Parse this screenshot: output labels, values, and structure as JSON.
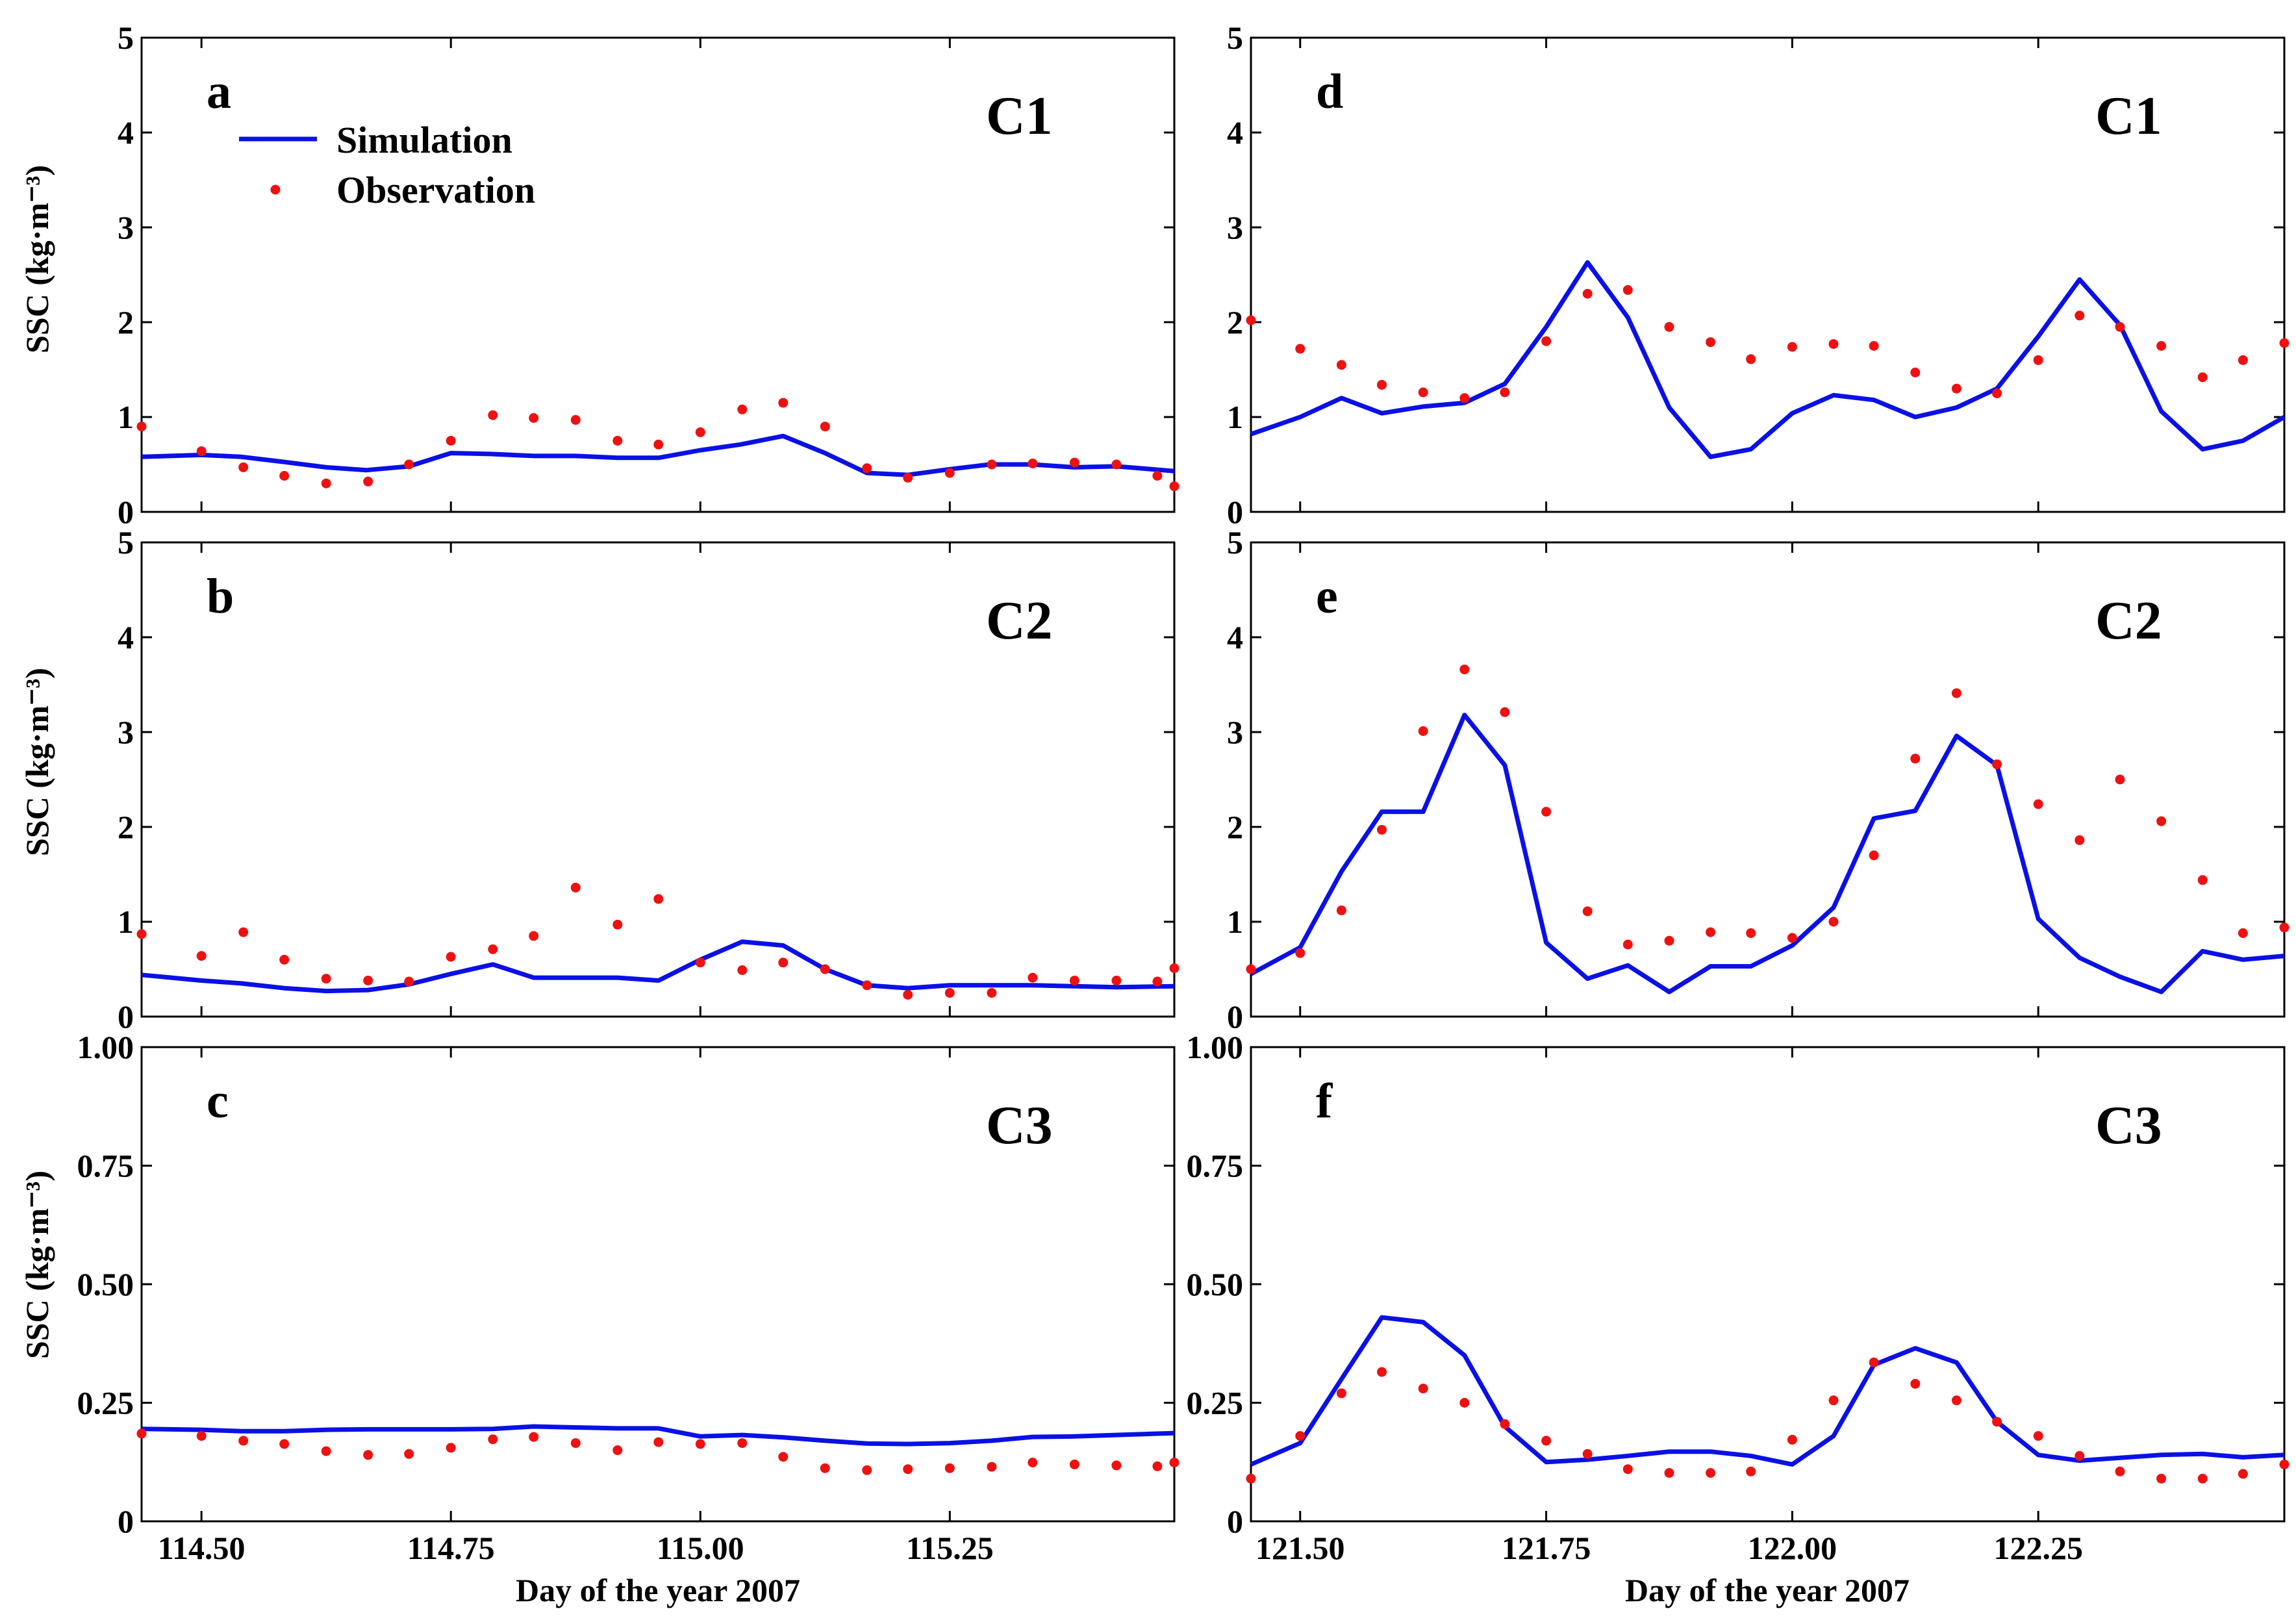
{
  "figure": {
    "xlabel": "Day of the year 2007",
    "ylabel": "SSC (kg·m⁻³)",
    "legend": {
      "simulation": "Simulation",
      "observation": "Observation"
    },
    "colors": {
      "simulation": "#0a10e6",
      "observation": "#ee1111"
    }
  },
  "chart_data": [
    {
      "type": "line",
      "panel": "a",
      "station": "C1",
      "legend": true,
      "xlim": [
        114.44,
        115.475
      ],
      "ylim": [
        0,
        5
      ],
      "xticks": [
        "114.50",
        "114.75",
        "115.00",
        "115.25"
      ],
      "yticks": [
        "0",
        "1",
        "2",
        "3",
        "4",
        "5"
      ],
      "series": [
        {
          "name": "Simulation",
          "kind": "line",
          "x": [
            114.44,
            114.5,
            114.54,
            114.58,
            114.625,
            114.665,
            114.708,
            114.75,
            114.79,
            114.833,
            114.875,
            114.917,
            114.958,
            115.0,
            115.04,
            115.083,
            115.125,
            115.167,
            115.208,
            115.25,
            115.29,
            115.333,
            115.375,
            115.417,
            115.475
          ],
          "y": [
            0.58,
            0.6,
            0.58,
            0.53,
            0.47,
            0.44,
            0.48,
            0.62,
            0.61,
            0.59,
            0.59,
            0.57,
            0.57,
            0.65,
            0.71,
            0.8,
            0.62,
            0.41,
            0.39,
            0.45,
            0.5,
            0.5,
            0.47,
            0.48,
            0.43
          ]
        },
        {
          "name": "Observation",
          "kind": "scatter",
          "x": [
            114.44,
            114.5,
            114.542,
            114.583,
            114.625,
            114.667,
            114.708,
            114.75,
            114.792,
            114.833,
            114.875,
            114.917,
            114.958,
            115.0,
            115.042,
            115.083,
            115.125,
            115.167,
            115.208,
            115.25,
            115.292,
            115.333,
            115.375,
            115.417,
            115.458,
            115.475
          ],
          "y": [
            0.9,
            0.64,
            0.47,
            0.38,
            0.3,
            0.32,
            0.5,
            0.75,
            1.02,
            0.99,
            0.97,
            0.75,
            0.71,
            0.84,
            1.08,
            1.15,
            0.9,
            0.46,
            0.36,
            0.41,
            0.5,
            0.51,
            0.52,
            0.5,
            0.38,
            0.27
          ]
        }
      ]
    },
    {
      "type": "line",
      "panel": "b",
      "station": "C2",
      "legend": false,
      "xlim": [
        114.44,
        115.475
      ],
      "ylim": [
        0,
        5
      ],
      "xticks": [
        "114.50",
        "114.75",
        "115.00",
        "115.25"
      ],
      "yticks": [
        "0",
        "1",
        "2",
        "3",
        "4",
        "5"
      ],
      "series": [
        {
          "name": "Simulation",
          "kind": "line",
          "x": [
            114.44,
            114.5,
            114.54,
            114.583,
            114.625,
            114.667,
            114.708,
            114.75,
            114.792,
            114.833,
            114.875,
            114.917,
            114.958,
            115.0,
            115.042,
            115.083,
            115.125,
            115.167,
            115.208,
            115.25,
            115.292,
            115.333,
            115.375,
            115.417,
            115.475
          ],
          "y": [
            0.44,
            0.38,
            0.35,
            0.3,
            0.27,
            0.28,
            0.34,
            0.45,
            0.55,
            0.41,
            0.41,
            0.41,
            0.38,
            0.6,
            0.79,
            0.75,
            0.5,
            0.33,
            0.3,
            0.33,
            0.33,
            0.33,
            0.32,
            0.31,
            0.32
          ]
        },
        {
          "name": "Observation",
          "kind": "scatter",
          "x": [
            114.44,
            114.5,
            114.542,
            114.583,
            114.625,
            114.667,
            114.708,
            114.75,
            114.792,
            114.833,
            114.875,
            114.917,
            114.958,
            115.0,
            115.042,
            115.083,
            115.125,
            115.167,
            115.208,
            115.25,
            115.292,
            115.333,
            115.375,
            115.417,
            115.458,
            115.475
          ],
          "y": [
            0.87,
            0.64,
            0.89,
            0.6,
            0.4,
            0.38,
            0.37,
            0.63,
            0.71,
            0.85,
            1.36,
            0.97,
            1.24,
            0.57,
            0.49,
            0.57,
            0.5,
            0.33,
            0.23,
            0.25,
            0.25,
            0.41,
            0.38,
            0.38,
            0.37,
            0.51
          ]
        }
      ]
    },
    {
      "type": "line",
      "panel": "c",
      "station": "C3",
      "legend": false,
      "xlim": [
        114.44,
        115.475
      ],
      "ylim": [
        0,
        1
      ],
      "xticks": [
        "114.50",
        "114.75",
        "115.00",
        "115.25"
      ],
      "yticks": [
        "0",
        "0.25",
        "0.50",
        "0.75",
        "1.00"
      ],
      "series": [
        {
          "name": "Simulation",
          "kind": "line",
          "x": [
            114.44,
            114.5,
            114.54,
            114.583,
            114.625,
            114.667,
            114.708,
            114.75,
            114.792,
            114.833,
            114.875,
            114.917,
            114.958,
            115.0,
            115.042,
            115.083,
            115.125,
            115.167,
            115.208,
            115.25,
            115.292,
            115.333,
            115.375,
            115.417,
            115.475
          ],
          "y": [
            0.195,
            0.193,
            0.19,
            0.19,
            0.193,
            0.194,
            0.194,
            0.194,
            0.195,
            0.2,
            0.198,
            0.196,
            0.196,
            0.179,
            0.182,
            0.177,
            0.17,
            0.164,
            0.163,
            0.165,
            0.17,
            0.178,
            0.179,
            0.182,
            0.186
          ]
        },
        {
          "name": "Observation",
          "kind": "scatter",
          "x": [
            114.44,
            114.5,
            114.542,
            114.583,
            114.625,
            114.667,
            114.708,
            114.75,
            114.792,
            114.833,
            114.875,
            114.917,
            114.958,
            115.0,
            115.042,
            115.083,
            115.125,
            115.167,
            115.208,
            115.25,
            115.292,
            115.333,
            115.375,
            115.417,
            115.458,
            115.475
          ],
          "y": [
            0.185,
            0.18,
            0.17,
            0.163,
            0.148,
            0.14,
            0.142,
            0.155,
            0.173,
            0.178,
            0.165,
            0.15,
            0.167,
            0.163,
            0.165,
            0.136,
            0.112,
            0.108,
            0.11,
            0.112,
            0.115,
            0.124,
            0.12,
            0.118,
            0.116,
            0.124
          ]
        }
      ]
    },
    {
      "type": "line",
      "panel": "d",
      "station": "C1",
      "legend": false,
      "xlim": [
        121.45,
        122.5
      ],
      "ylim": [
        0,
        5
      ],
      "xticks": [
        "121.50",
        "121.75",
        "122.00",
        "122.25"
      ],
      "yticks": [
        "0",
        "1",
        "2",
        "3",
        "4",
        "5"
      ],
      "series": [
        {
          "name": "Simulation",
          "kind": "line",
          "x": [
            121.45,
            121.5,
            121.542,
            121.583,
            121.625,
            121.667,
            121.708,
            121.75,
            121.792,
            121.833,
            121.875,
            121.917,
            121.958,
            122.0,
            122.042,
            122.083,
            122.125,
            122.167,
            122.208,
            122.25,
            122.292,
            122.333,
            122.375,
            122.417,
            122.458,
            122.5
          ],
          "y": [
            0.82,
            1.0,
            1.2,
            1.04,
            1.11,
            1.15,
            1.35,
            1.95,
            2.63,
            2.05,
            1.1,
            0.58,
            0.66,
            1.04,
            1.23,
            1.18,
            1.0,
            1.1,
            1.3,
            1.85,
            2.45,
            1.97,
            1.06,
            0.66,
            0.75,
            1.0
          ]
        },
        {
          "name": "Observation",
          "kind": "scatter",
          "x": [
            121.45,
            121.5,
            121.542,
            121.583,
            121.625,
            121.667,
            121.708,
            121.75,
            121.792,
            121.833,
            121.875,
            121.917,
            121.958,
            122.0,
            122.042,
            122.083,
            122.125,
            122.167,
            122.208,
            122.25,
            122.292,
            122.333,
            122.375,
            122.417,
            122.458,
            122.5
          ],
          "y": [
            2.02,
            1.72,
            1.55,
            1.34,
            1.26,
            1.2,
            1.26,
            1.8,
            2.3,
            2.34,
            1.95,
            1.79,
            1.61,
            1.74,
            1.77,
            1.75,
            1.47,
            1.3,
            1.25,
            1.6,
            2.07,
            1.95,
            1.75,
            1.42,
            1.6,
            1.78
          ]
        }
      ]
    },
    {
      "type": "line",
      "panel": "e",
      "station": "C2",
      "legend": false,
      "xlim": [
        121.45,
        122.5
      ],
      "ylim": [
        0,
        5
      ],
      "xticks": [
        "121.50",
        "121.75",
        "122.00",
        "122.25"
      ],
      "yticks": [
        "0",
        "1",
        "2",
        "3",
        "4",
        "5"
      ],
      "series": [
        {
          "name": "Simulation",
          "kind": "line",
          "x": [
            121.45,
            121.5,
            121.542,
            121.583,
            121.625,
            121.667,
            121.708,
            121.75,
            121.792,
            121.833,
            121.875,
            121.917,
            121.958,
            122.0,
            122.042,
            122.083,
            122.125,
            122.167,
            122.208,
            122.25,
            122.292,
            122.333,
            122.375,
            122.417,
            122.458,
            122.5
          ],
          "y": [
            0.45,
            0.73,
            1.53,
            2.16,
            2.16,
            3.18,
            2.65,
            0.78,
            0.4,
            0.54,
            0.26,
            0.53,
            0.53,
            0.75,
            1.15,
            2.09,
            2.17,
            2.96,
            2.65,
            1.03,
            0.62,
            0.42,
            0.26,
            0.69,
            0.6,
            0.64
          ]
        },
        {
          "name": "Observation",
          "kind": "scatter",
          "x": [
            121.45,
            121.5,
            121.542,
            121.583,
            121.625,
            121.667,
            121.708,
            121.75,
            121.792,
            121.833,
            121.875,
            121.917,
            121.958,
            122.0,
            122.042,
            122.083,
            122.125,
            122.167,
            122.208,
            122.25,
            122.292,
            122.333,
            122.375,
            122.417,
            122.458,
            122.5
          ],
          "y": [
            0.5,
            0.67,
            1.12,
            1.97,
            3.01,
            3.66,
            3.21,
            2.16,
            1.11,
            0.76,
            0.8,
            0.89,
            0.88,
            0.83,
            1.0,
            1.7,
            2.72,
            3.41,
            2.66,
            2.24,
            1.86,
            2.5,
            2.06,
            1.44,
            0.88,
            0.94
          ]
        }
      ]
    },
    {
      "type": "line",
      "panel": "f",
      "station": "C3",
      "legend": false,
      "xlim": [
        121.45,
        122.5
      ],
      "ylim": [
        0,
        1
      ],
      "xticks": [
        "121.50",
        "121.75",
        "122.00",
        "122.25"
      ],
      "yticks": [
        "0",
        "0.25",
        "0.50",
        "0.75",
        "1.00"
      ],
      "series": [
        {
          "name": "Simulation",
          "kind": "line",
          "x": [
            121.45,
            121.5,
            121.542,
            121.583,
            121.625,
            121.667,
            121.708,
            121.75,
            121.792,
            121.833,
            121.875,
            121.917,
            121.958,
            122.0,
            122.042,
            122.083,
            122.125,
            122.167,
            122.208,
            122.25,
            122.292,
            122.333,
            122.375,
            122.417,
            122.458,
            122.5
          ],
          "y": [
            0.12,
            0.165,
            0.3,
            0.43,
            0.42,
            0.35,
            0.2,
            0.125,
            0.13,
            0.138,
            0.147,
            0.147,
            0.138,
            0.12,
            0.18,
            0.33,
            0.365,
            0.335,
            0.21,
            0.14,
            0.128,
            0.134,
            0.14,
            0.142,
            0.135,
            0.14
          ]
        },
        {
          "name": "Observation",
          "kind": "scatter",
          "x": [
            121.45,
            121.5,
            121.542,
            121.583,
            121.625,
            121.667,
            121.708,
            121.75,
            121.792,
            121.833,
            121.875,
            121.917,
            121.958,
            122.0,
            122.042,
            122.083,
            122.125,
            122.167,
            122.208,
            122.25,
            122.292,
            122.333,
            122.375,
            122.417,
            122.458,
            122.5
          ],
          "y": [
            0.09,
            0.18,
            0.27,
            0.315,
            0.28,
            0.25,
            0.205,
            0.17,
            0.142,
            0.11,
            0.102,
            0.102,
            0.105,
            0.172,
            0.255,
            0.335,
            0.29,
            0.255,
            0.21,
            0.18,
            0.138,
            0.105,
            0.09,
            0.09,
            0.1,
            0.12
          ]
        }
      ]
    }
  ]
}
